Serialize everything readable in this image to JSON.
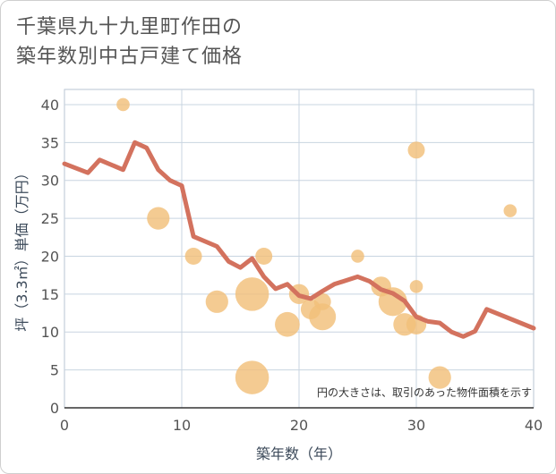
{
  "title": {
    "line1": "千葉県九十九里町作田の",
    "line2": "築年数別中古戸建て価格"
  },
  "note": "円の大きさは、取引のあった物件面積を示す",
  "colors": {
    "line": "#d3725e",
    "bubble": "#f2c07a",
    "grid": "#c8d4e0",
    "plot_border": "#b9c6d3"
  },
  "chart_data": {
    "type": "scatter",
    "xlabel": "築年数（年）",
    "ylabel": "坪（3.3㎡）単価（万円）",
    "xlim": [
      0,
      40
    ],
    "ylim": [
      0,
      42
    ],
    "xticks": [
      0,
      10,
      20,
      30,
      40
    ],
    "yticks": [
      0,
      5,
      10,
      15,
      20,
      25,
      30,
      35,
      40
    ],
    "line": {
      "x": [
        0,
        2,
        3,
        5,
        6,
        7,
        8,
        9,
        10,
        11,
        13,
        14,
        15,
        16,
        17,
        18,
        19,
        20,
        21,
        22,
        23,
        25,
        26,
        27,
        28,
        29,
        30,
        31,
        32,
        33,
        34,
        35,
        36,
        40
      ],
      "y": [
        32.2,
        31,
        32.7,
        31.4,
        35,
        34.3,
        31.4,
        30,
        29.3,
        22.6,
        21.3,
        19.3,
        18.5,
        19.7,
        17.3,
        15.7,
        16.3,
        14.8,
        14.4,
        15.4,
        16.3,
        17.3,
        16.7,
        15.6,
        15.1,
        14.1,
        12,
        11.4,
        11.2,
        10,
        9.4,
        10.1,
        13,
        10.5
      ]
    },
    "bubbles": [
      {
        "x": 5,
        "y": 40,
        "size": 1
      },
      {
        "x": 8,
        "y": 25,
        "size": 4
      },
      {
        "x": 11,
        "y": 20,
        "size": 2
      },
      {
        "x": 13,
        "y": 14,
        "size": 4
      },
      {
        "x": 16,
        "y": 15,
        "size": 10
      },
      {
        "x": 16,
        "y": 4,
        "size": 10
      },
      {
        "x": 17,
        "y": 20,
        "size": 2
      },
      {
        "x": 19,
        "y": 11,
        "size": 5
      },
      {
        "x": 20,
        "y": 15,
        "size": 3
      },
      {
        "x": 21,
        "y": 13,
        "size": 3
      },
      {
        "x": 22,
        "y": 12,
        "size": 6
      },
      {
        "x": 22,
        "y": 14,
        "size": 2
      },
      {
        "x": 25,
        "y": 20,
        "size": 1
      },
      {
        "x": 27,
        "y": 16,
        "size": 3
      },
      {
        "x": 28,
        "y": 14,
        "size": 7
      },
      {
        "x": 29,
        "y": 11,
        "size": 4
      },
      {
        "x": 30,
        "y": 34,
        "size": 2
      },
      {
        "x": 30,
        "y": 16,
        "size": 1
      },
      {
        "x": 30,
        "y": 11,
        "size": 3
      },
      {
        "x": 32,
        "y": 4,
        "size": 4
      },
      {
        "x": 38,
        "y": 26,
        "size": 1
      }
    ]
  }
}
